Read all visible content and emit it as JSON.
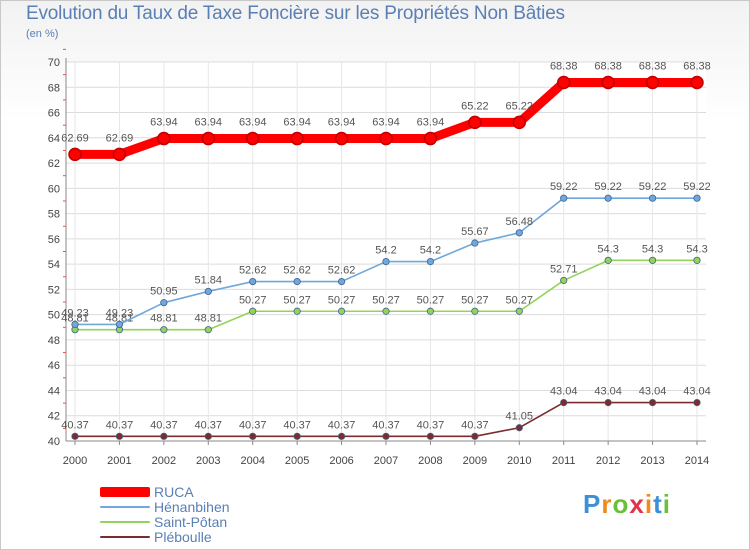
{
  "chart_data": {
    "type": "line",
    "title": "Evolution du Taux de Taxe Foncière sur les Propriétés Non Bâties",
    "ylabel": "(en %)",
    "xlabel": "",
    "x": [
      "2000",
      "2001",
      "2002",
      "2003",
      "2004",
      "2005",
      "2006",
      "2007",
      "2008",
      "2009",
      "2010",
      "2011",
      "2012",
      "2013",
      "2014"
    ],
    "ylim": [
      40,
      70
    ],
    "yticks": [
      "40",
      "42",
      "44",
      "46",
      "48",
      "50",
      "52",
      "54",
      "56",
      "58",
      "60",
      "62",
      "64",
      "66",
      "68",
      "70"
    ],
    "series": [
      {
        "name": "RUCA",
        "color": "#ff0000",
        "values": [
          62.69,
          62.69,
          63.94,
          63.94,
          63.94,
          63.94,
          63.94,
          63.94,
          63.94,
          65.22,
          65.22,
          68.38,
          68.38,
          68.38,
          68.38
        ],
        "labels": [
          "62.69",
          "62.69",
          "63.94",
          "63.94",
          "63.94",
          "63.94",
          "63.94",
          "63.94",
          "63.94",
          "65.22",
          "65.22",
          "68.38",
          "68.38",
          "68.38",
          "68.38"
        ]
      },
      {
        "name": "Hénanbihen",
        "color": "#6fa8dc",
        "values": [
          49.23,
          49.23,
          50.95,
          51.84,
          52.62,
          52.62,
          52.62,
          54.2,
          54.2,
          55.67,
          56.48,
          59.22,
          59.22,
          59.22,
          59.22
        ],
        "labels": [
          "49.23",
          "49.23",
          "50.95",
          "51.84",
          "52.62",
          "52.62",
          "52.62",
          "54.2",
          "54.2",
          "55.67",
          "56.48",
          "59.22",
          "59.22",
          "59.22",
          "59.22"
        ]
      },
      {
        "name": "Saint-Pôtan",
        "color": "#93d35b",
        "values": [
          48.81,
          48.81,
          48.81,
          48.81,
          50.27,
          50.27,
          50.27,
          50.27,
          50.27,
          50.27,
          50.27,
          52.71,
          54.3,
          54.3,
          54.3
        ],
        "labels": [
          "48.81",
          "48.81",
          "48.81",
          "48.81",
          "50.27",
          "50.27",
          "50.27",
          "50.27",
          "50.27",
          "50.27",
          "50.27",
          "52.71",
          "54.3",
          "54.3",
          "54.3"
        ]
      },
      {
        "name": "Pléboulle",
        "color": "#7b2c2c",
        "values": [
          40.37,
          40.37,
          40.37,
          40.37,
          40.37,
          40.37,
          40.37,
          40.37,
          40.37,
          40.37,
          41.05,
          43.04,
          43.04,
          43.04,
          43.04
        ],
        "labels": [
          "40.37",
          "40.37",
          "40.37",
          "40.37",
          "40.37",
          "40.37",
          "40.37",
          "40.37",
          "40.37",
          "40.37",
          "41.05",
          "43.04",
          "43.04",
          "43.04",
          "43.04"
        ]
      }
    ]
  },
  "logo": {
    "letters": [
      "P",
      "r",
      "o",
      "x",
      "i",
      "t",
      "i"
    ],
    "colors": [
      "#3d8fd8",
      "#f08a1c",
      "#6abf3b",
      "#e0324b",
      "#f08a1c",
      "#3d8fd8",
      "#6abf3b"
    ]
  }
}
